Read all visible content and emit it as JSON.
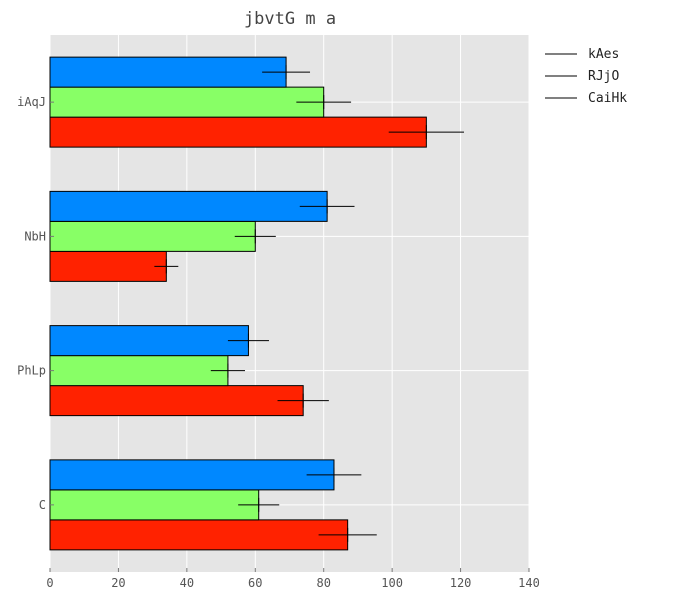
{
  "chart_data": {
    "type": "bar",
    "orientation": "horizontal",
    "title": "jbvtG  m a",
    "categories": [
      "iAqJ",
      "NbH",
      "PhLp",
      "C"
    ],
    "series": [
      {
        "name": "kAes",
        "color": "#ff2200",
        "values": [
          110,
          34,
          74,
          87
        ],
        "errors": [
          11,
          3.5,
          7.5,
          8.5
        ]
      },
      {
        "name": "RJjO",
        "color": "#88ff66",
        "values": [
          80,
          60,
          52,
          61
        ],
        "errors": [
          8,
          6,
          5,
          6
        ]
      },
      {
        "name": "CaiHk",
        "color": "#0088ff",
        "values": [
          69,
          81,
          58,
          83
        ],
        "errors": [
          7,
          8,
          6,
          8
        ]
      }
    ],
    "xlim": [
      0,
      140
    ],
    "xticks": [
      0,
      20,
      40,
      60,
      80,
      100,
      120,
      140
    ],
    "grid": true,
    "legend_position": "outside-right-top",
    "background_color": "#e5e5e5"
  }
}
